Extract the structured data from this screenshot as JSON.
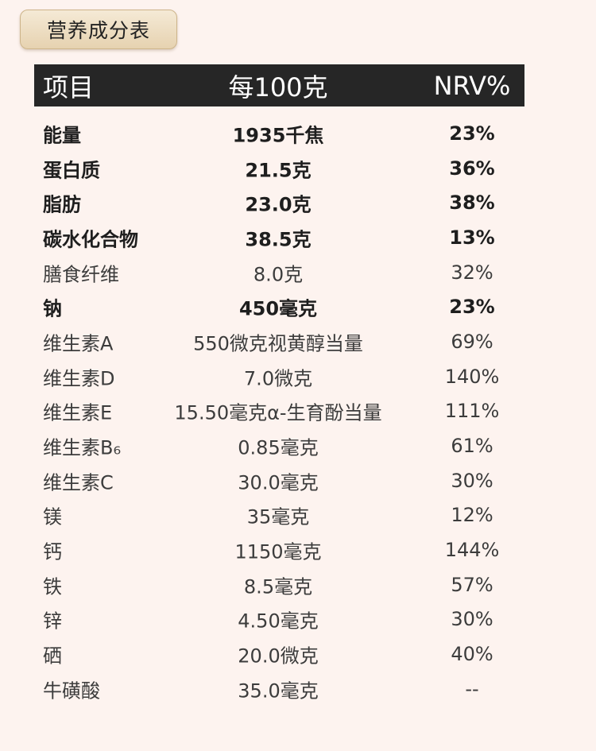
{
  "title": "营养成分表",
  "header": {
    "item": "项目",
    "per100g": "每100克",
    "nrv": "NRV%"
  },
  "rows": [
    {
      "name": "能量",
      "per100g": "1935千焦",
      "nrv": "23%",
      "bold": true
    },
    {
      "name": "蛋白质",
      "per100g": "21.5克",
      "nrv": "36%",
      "bold": true
    },
    {
      "name": "脂肪",
      "per100g": "23.0克",
      "nrv": "38%",
      "bold": true
    },
    {
      "name": "碳水化合物",
      "per100g": "38.5克",
      "nrv": "13%",
      "bold": true
    },
    {
      "name": "膳食纤维",
      "per100g": "8.0克",
      "nrv": "32%",
      "bold": false
    },
    {
      "name": "钠",
      "per100g": "450毫克",
      "nrv": "23%",
      "bold": true
    },
    {
      "name": "维生素A",
      "per100g": "550微克视黄醇当量",
      "nrv": "69%",
      "bold": false
    },
    {
      "name": "维生素D",
      "per100g": "7.0微克",
      "nrv": "140%",
      "bold": false
    },
    {
      "name": "维生素E",
      "per100g": "15.50毫克α-生育酚当量",
      "nrv": "111%",
      "bold": false
    },
    {
      "name": "维生素B₆",
      "per100g": "0.85毫克",
      "nrv": "61%",
      "bold": false
    },
    {
      "name": "维生素C",
      "per100g": "30.0毫克",
      "nrv": "30%",
      "bold": false
    },
    {
      "name": "镁",
      "per100g": "35毫克",
      "nrv": "12%",
      "bold": false
    },
    {
      "name": "钙",
      "per100g": "1150毫克",
      "nrv": "144%",
      "bold": false
    },
    {
      "name": "铁",
      "per100g": "8.5毫克",
      "nrv": "57%",
      "bold": false
    },
    {
      "name": "锌",
      "per100g": "4.50毫克",
      "nrv": "30%",
      "bold": false
    },
    {
      "name": "硒",
      "per100g": "20.0微克",
      "nrv": "40%",
      "bold": false
    },
    {
      "name": "牛磺酸",
      "per100g": "35.0毫克",
      "nrv": "--",
      "bold": false
    }
  ]
}
